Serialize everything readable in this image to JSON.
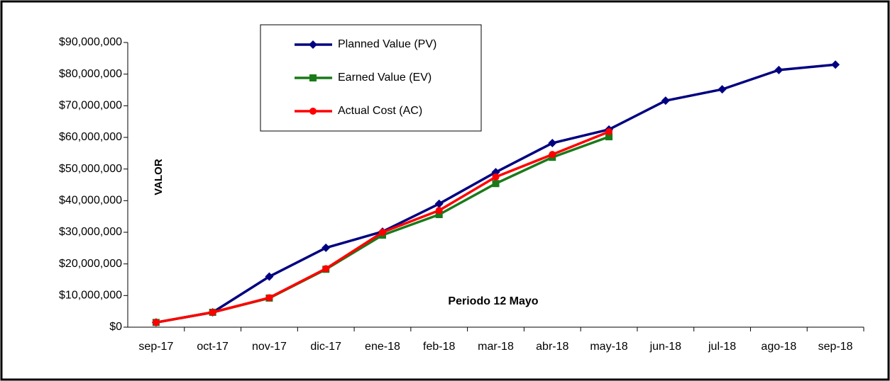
{
  "chart_data": {
    "type": "line",
    "y_label": "VALOR",
    "annotation": "Periodo  12  Mayo",
    "categories": [
      "sep-17",
      "oct-17",
      "nov-17",
      "dic-17",
      "ene-18",
      "feb-18",
      "mar-18",
      "abr-18",
      "may-18",
      "jun-18",
      "jul-18",
      "ago-18",
      "sep-18"
    ],
    "series": [
      {
        "name": "Planned Value (PV)",
        "color": "#000080",
        "marker": "diamond",
        "values": [
          1500000,
          4700000,
          16000000,
          25100000,
          30200000,
          39000000,
          49000000,
          58200000,
          62500000,
          71600000,
          75200000,
          81300000,
          83000000
        ]
      },
      {
        "name": "Earned Value (EV)",
        "color": "#1a7a1a",
        "marker": "square",
        "values": [
          1500000,
          4700000,
          9200000,
          18300000,
          29100000,
          35600000,
          45400000,
          53700000,
          60200000,
          null,
          null,
          null,
          null
        ]
      },
      {
        "name": "Actual Cost (AC)",
        "color": "#ff0000",
        "marker": "circle",
        "values": [
          1500000,
          4700000,
          9300000,
          18500000,
          30000000,
          36900000,
          47500000,
          54600000,
          61800000,
          null,
          null,
          null,
          null
        ]
      }
    ],
    "ylim": [
      0,
      90000000
    ],
    "yticks": [
      {
        "value": 0,
        "label": "$0"
      },
      {
        "value": 10000000,
        "label": "$10,000,000"
      },
      {
        "value": 20000000,
        "label": "$20,000,000"
      },
      {
        "value": 30000000,
        "label": "$30,000,000"
      },
      {
        "value": 40000000,
        "label": "$40,000,000"
      },
      {
        "value": 50000000,
        "label": "$50,000,000"
      },
      {
        "value": 60000000,
        "label": "$60,000,000"
      },
      {
        "value": 70000000,
        "label": "$70,000,000"
      },
      {
        "value": 80000000,
        "label": "$80,000,000"
      },
      {
        "value": 90000000,
        "label": "$90,000,000"
      }
    ],
    "grid": false,
    "legend": "top-left"
  }
}
